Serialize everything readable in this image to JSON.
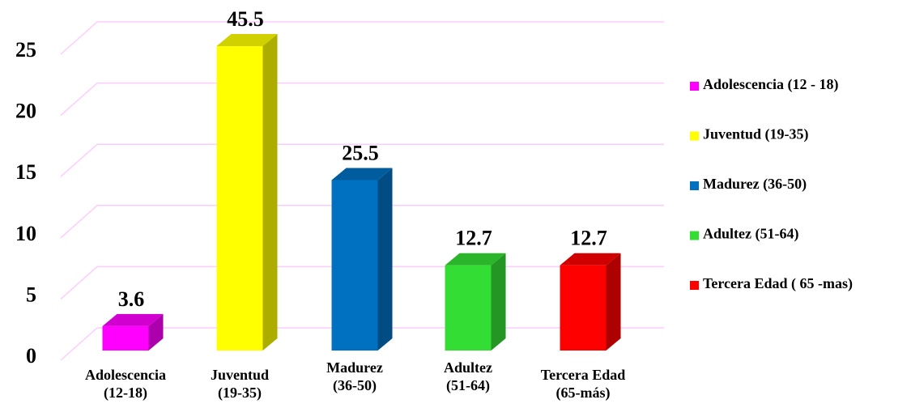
{
  "chart_data": {
    "type": "bar3d",
    "categories": [
      "Adolescencia\n(12-18)",
      "Juventud\n(19-35)",
      "Madurez\n(36-50)",
      "Adultez\n(51-64)",
      "Tercera Edad\n(65-más)"
    ],
    "values": [
      2,
      25,
      14,
      7,
      7
    ],
    "annotations": [
      "3.6",
      "45.5",
      "25.5",
      "12.7",
      "12.7"
    ],
    "colors": [
      "#ff00ff",
      "#ffff00",
      "#0070c0",
      "#33dd33",
      "#ff0000"
    ],
    "legend": [
      "Adolescencia (12 - 18)",
      "Juventud (19-35)",
      "Madurez (36-50)",
      "Adultez (51-64)",
      "Tercera Edad ( 65 -mas)"
    ],
    "ylim": [
      0,
      25
    ],
    "yticks": [
      0,
      5,
      10,
      15,
      20,
      25
    ],
    "grid": true,
    "legend_position": "right"
  }
}
